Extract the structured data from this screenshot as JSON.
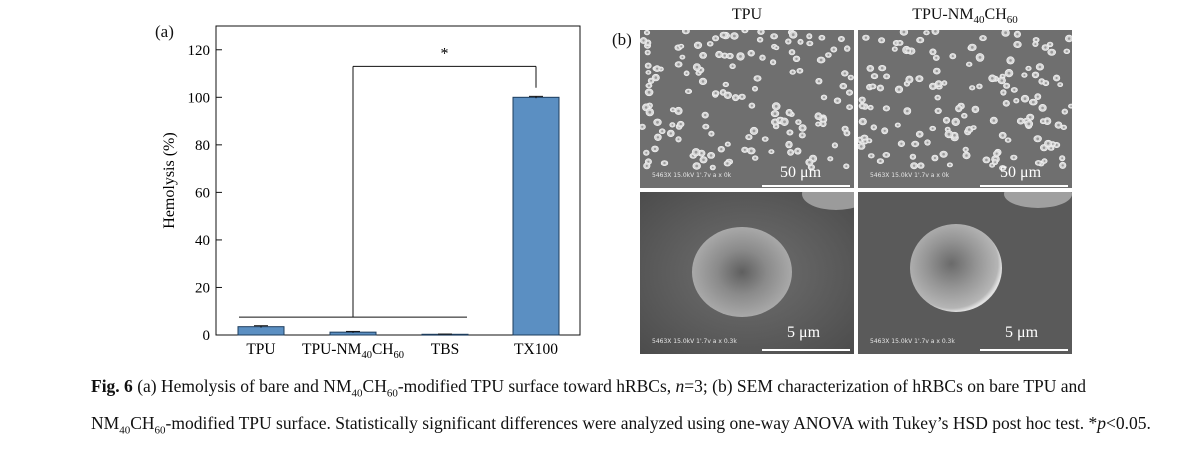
{
  "panel_a_label": "(a)",
  "panel_b_label": "(b)",
  "chart_data": {
    "type": "bar",
    "categories": [
      "TPU",
      "TPU-NM40CH60",
      "TBS",
      "TX100"
    ],
    "values": [
      3.5,
      1.2,
      0.3,
      100
    ],
    "errors": [
      0.4,
      0.3,
      0.1,
      0.4
    ],
    "ylabel": "Hemolysis (%)",
    "ylim": [
      0,
      130
    ],
    "yticks": [
      0,
      20,
      40,
      60,
      80,
      100,
      120
    ],
    "bar_color": "#5b8fc2",
    "significance_mark": "*",
    "grid": false
  },
  "sem": {
    "col1_title": "TPU",
    "col2_title_main": "TPU-NM",
    "col2_title_sub": "40",
    "col2_title_main2": "CH",
    "col2_title_sub2": "60",
    "scale_low": "50 μm",
    "scale_high": "5 μm",
    "meta_low": "5463X 15.0kV 1'.7v a x 0k",
    "meta_high": "5463X 15.0kV 1'.7v a x 0.3k"
  },
  "caption": {
    "fig_label": "Fig. 6",
    "t1": " (a) Hemolysis of bare and NM",
    "s1": "40",
    "t2": "CH",
    "s2": "60",
    "t3": "-modified TPU surface toward hRBCs, ",
    "n_italic": "n",
    "t4": "=3; (b) SEM characterization of hRBCs on bare TPU and NM",
    "s3": "40",
    "t5": "CH",
    "s4": "60",
    "t6": "-modified TPU surface. Statistically significant differences were analyzed using one-way ANOVA with Tukey’s HSD post hoc test. *",
    "p_italic": "p",
    "t7": "<0.05."
  }
}
